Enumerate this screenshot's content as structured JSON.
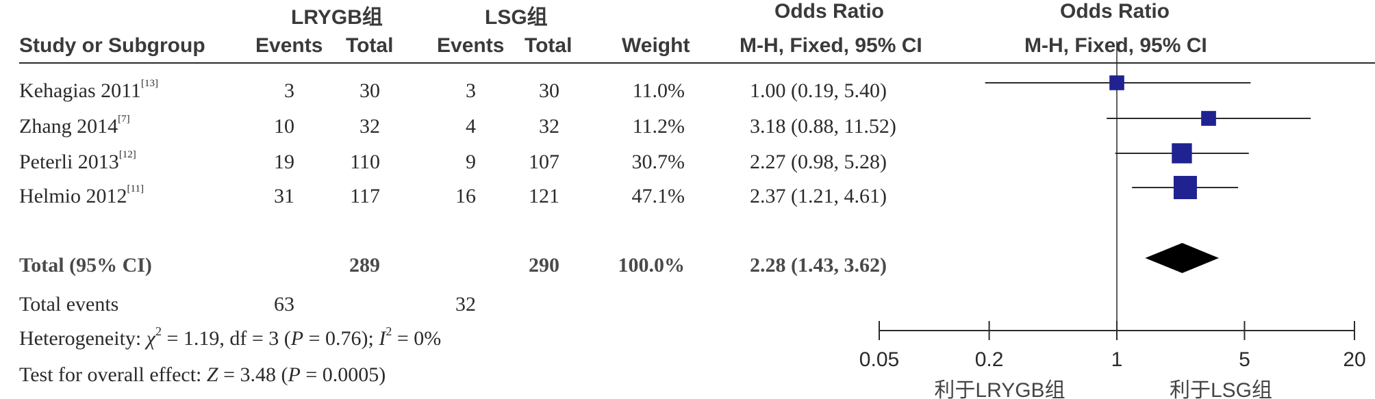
{
  "header": {
    "group1": "LRYGB组",
    "group2": "LSG组",
    "odds_ratio_left": "Odds Ratio",
    "odds_ratio_right": "Odds Ratio",
    "study_col": "Study or Subgroup",
    "events1": "Events",
    "total1": "Total",
    "events2": "Events",
    "total2": "Total",
    "weight": "Weight",
    "method_left": "M-H, Fixed, 95% CI",
    "method_right": "M-H, Fixed, 95% CI"
  },
  "studies": [
    {
      "name": "Kehagias 2011",
      "ref": "[13]",
      "events1": "3",
      "total1": "30",
      "events2": "3",
      "total2": "30",
      "weight": "11.0%",
      "ci_text": "1.00 (0.19, 5.40)"
    },
    {
      "name": "Zhang 2014",
      "ref": "[7]",
      "events1": "10",
      "total1": "32",
      "events2": "4",
      "total2": "32",
      "weight": "11.2%",
      "ci_text": "3.18 (0.88, 11.52)"
    },
    {
      "name": "Peterli 2013",
      "ref": "[12]",
      "events1": "19",
      "total1": "110",
      "events2": "9",
      "total2": "107",
      "weight": "30.7%",
      "ci_text": "2.27 (0.98, 5.28)"
    },
    {
      "name": "Helmio 2012",
      "ref": "[11]",
      "events1": "31",
      "total1": "117",
      "events2": "16",
      "total2": "121",
      "weight": "47.1%",
      "ci_text": "2.37 (1.21, 4.61)"
    }
  ],
  "total": {
    "label": "Total (95% CI)",
    "total1": "289",
    "total2": "290",
    "weight": "100.0%",
    "ci_text": "2.28 (1.43, 3.62)"
  },
  "total_events": {
    "label": "Total events",
    "events1": "63",
    "events2": "32"
  },
  "heterogeneity": {
    "prefix": "Heterogeneity: ",
    "chi_symbol": "χ",
    "chi_sup": "2",
    "chi_value": " = 1.19, df = 3 (",
    "p_symbol": "P",
    "p_value": " = 0.76); ",
    "i_symbol": "I",
    "i_sup": "2",
    "i_value": " = 0%"
  },
  "overall_effect": {
    "prefix": "Test for overall effect: ",
    "z_symbol": "Z",
    "z_value": " = 3.48 (",
    "p_symbol": "P",
    "p_value": " = 0.0005)"
  },
  "chart_data": {
    "type": "forest",
    "scale": "log",
    "xlim": [
      0.05,
      20
    ],
    "ticks": [
      0.05,
      0.2,
      1,
      5,
      20
    ],
    "tick_labels": [
      "0.05",
      "0.2",
      "1",
      "5",
      "20"
    ],
    "reference_line": 1,
    "xlabel_left": "利于LRYGB组",
    "xlabel_right": "利于LSG组",
    "marker_color": "#1f2290",
    "studies": [
      {
        "or": 1.0,
        "lower": 0.19,
        "upper": 5.4,
        "weight": 11.0
      },
      {
        "or": 3.18,
        "lower": 0.88,
        "upper": 11.52,
        "weight": 11.2
      },
      {
        "or": 2.27,
        "lower": 0.98,
        "upper": 5.28,
        "weight": 30.7
      },
      {
        "or": 2.37,
        "lower": 1.21,
        "upper": 4.61,
        "weight": 47.1
      }
    ],
    "pooled": {
      "or": 2.28,
      "lower": 1.43,
      "upper": 3.62
    }
  }
}
